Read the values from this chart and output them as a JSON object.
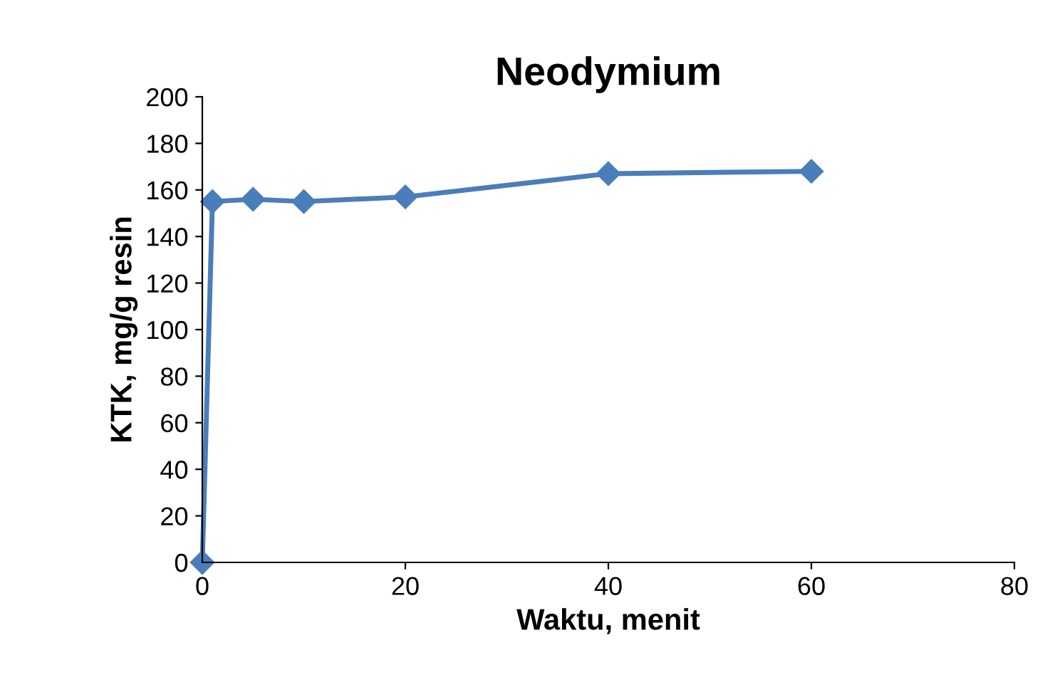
{
  "chart_data": {
    "type": "line",
    "title": "Neodymium",
    "xlabel": "Waktu, menit",
    "ylabel": "KTK, mg/g resin",
    "x": [
      0,
      1,
      5,
      10,
      20,
      40,
      60
    ],
    "series": [
      {
        "color": "#4a7ebb",
        "values": [
          0,
          155,
          156,
          155,
          157,
          167,
          168
        ]
      }
    ],
    "xlim": [
      0,
      80
    ],
    "xticks": [
      0,
      20,
      40,
      60,
      80
    ],
    "ylim": [
      0,
      200
    ],
    "yticks": [
      0,
      20,
      40,
      60,
      80,
      100,
      120,
      140,
      160,
      180,
      200
    ],
    "grid": false,
    "legend": false,
    "marker": "diamond",
    "line_style": "solid"
  }
}
